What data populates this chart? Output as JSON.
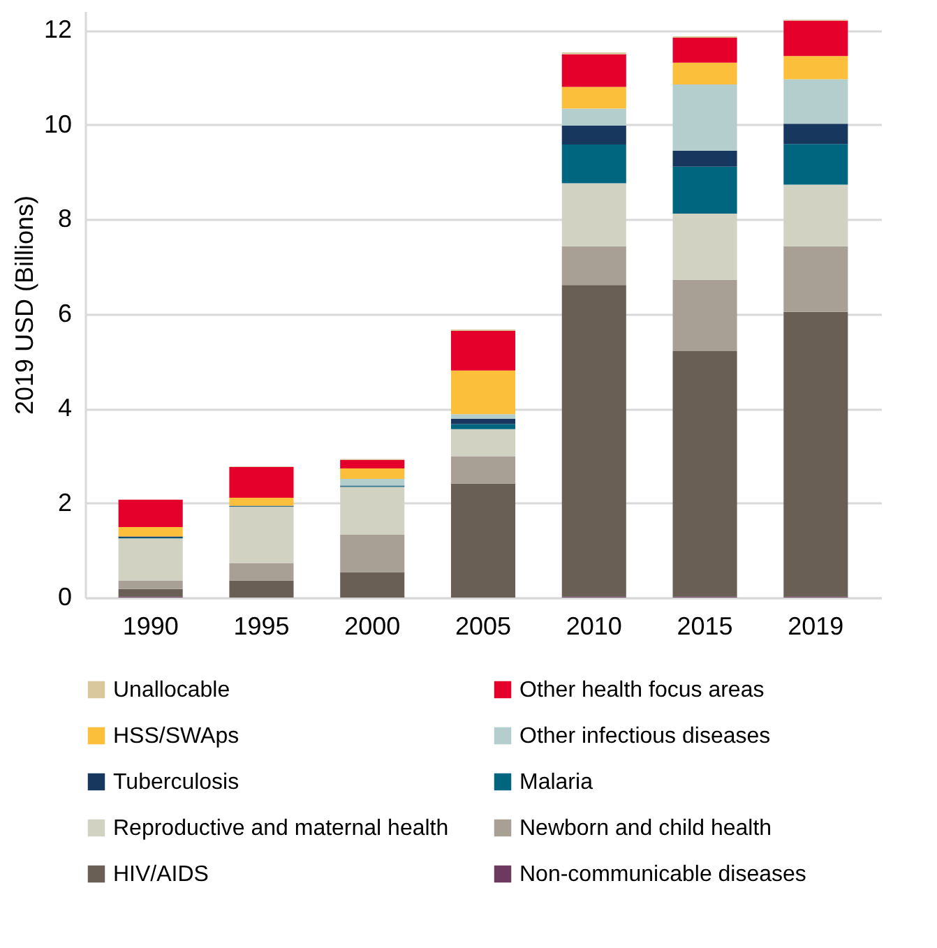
{
  "chart_data": {
    "type": "bar",
    "stacked": true,
    "ylabel": "2019 USD (Billions)",
    "categories": [
      "1990",
      "1995",
      "2000",
      "2005",
      "2010",
      "2015",
      "2019"
    ],
    "series": [
      {
        "name": "Non-communicable diseases",
        "color": "#6b3a5e",
        "values": [
          0.02,
          0.0,
          0.0,
          0.0,
          0.02,
          0.02,
          0.02
        ]
      },
      {
        "name": "HIV/AIDS",
        "color": "#6a5f55",
        "values": [
          0.16,
          0.36,
          0.54,
          2.41,
          6.59,
          5.19,
          6.02
        ]
      },
      {
        "name": "Newborn and child health",
        "color": "#a9a095",
        "values": [
          0.18,
          0.37,
          0.79,
          0.58,
          0.82,
          1.51,
          1.39
        ]
      },
      {
        "name": "Reproductive and maternal health",
        "color": "#d2d2c3",
        "values": [
          0.89,
          1.19,
          1.01,
          0.57,
          1.33,
          1.4,
          1.3
        ]
      },
      {
        "name": "Malaria",
        "color": "#006680",
        "values": [
          0.02,
          0.01,
          0.02,
          0.11,
          0.82,
          0.99,
          0.86
        ]
      },
      {
        "name": "Tuberculosis",
        "color": "#17375e",
        "values": [
          0.02,
          0.01,
          0.01,
          0.11,
          0.4,
          0.34,
          0.43
        ]
      },
      {
        "name": "Other infectious diseases",
        "color": "#b4cece",
        "values": [
          null,
          null,
          0.14,
          0.1,
          0.36,
          1.4,
          0.94
        ]
      },
      {
        "name": "HSS/SWAps",
        "color": "#fbbf3c",
        "values": [
          0.2,
          0.17,
          0.22,
          0.92,
          0.46,
          0.46,
          0.49
        ]
      },
      {
        "name": "Other health focus areas",
        "color": "#e4002b",
        "values": [
          0.58,
          0.65,
          0.18,
          0.84,
          0.69,
          0.53,
          0.75
        ]
      },
      {
        "name": "Unallocable",
        "color": "#d9c89e",
        "values": [
          null,
          0.01,
          0.02,
          0.03,
          0.04,
          0.03,
          0.02
        ]
      }
    ],
    "ylim": [
      0,
      12.4
    ],
    "yticks": [
      0,
      2,
      4,
      6,
      8,
      10,
      12
    ],
    "grid": "y",
    "legend": "bottom"
  }
}
